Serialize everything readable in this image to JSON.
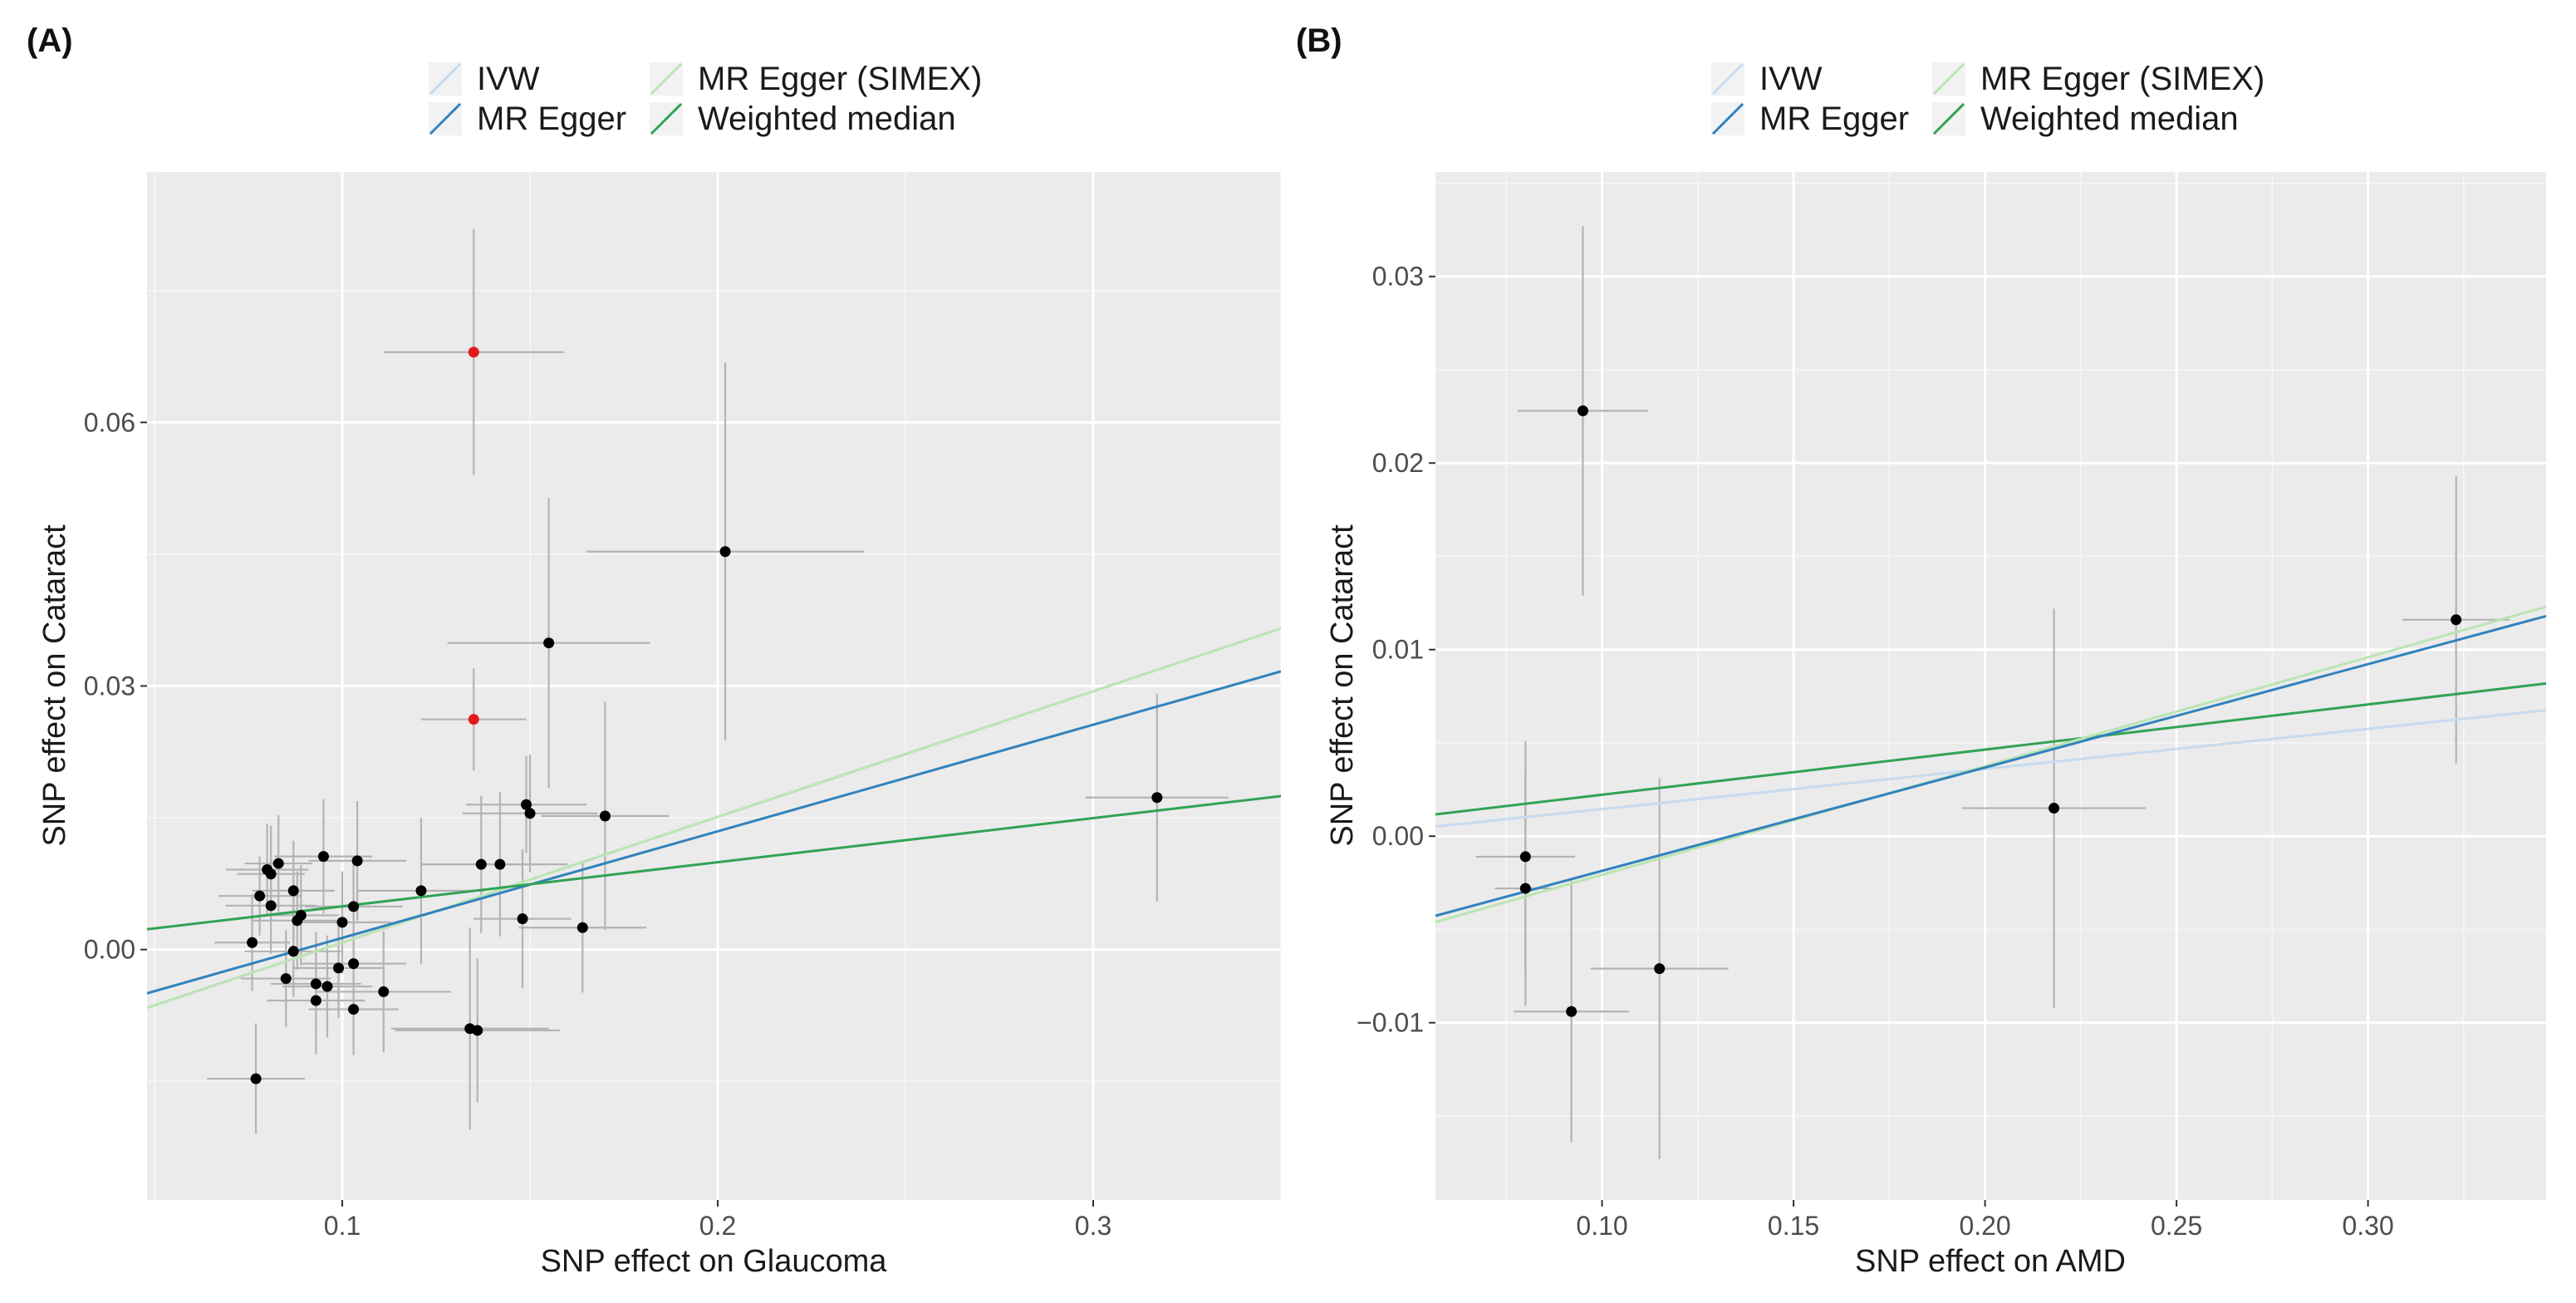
{
  "chart_data": [
    {
      "type": "scatter",
      "panel_label": "(A)",
      "xlabel": "SNP effect on Glaucoma",
      "ylabel": "SNP effect on Cataract",
      "xlim": [
        0.048,
        0.35
      ],
      "ylim": [
        -0.0285,
        0.0885
      ],
      "x_ticks": [
        0.1,
        0.2,
        0.3
      ],
      "x_tick_labels": [
        "0.1",
        "0.2",
        "0.3"
      ],
      "y_ticks": [
        0.0,
        0.03,
        0.06
      ],
      "y_tick_labels": [
        "0.00",
        "0.03",
        "0.06"
      ],
      "grid": true,
      "legend": [
        {
          "name": "IVW",
          "color": "#c6dbef"
        },
        {
          "name": "MR Egger",
          "color": "#3182bd"
        },
        {
          "name": "MR Egger (SIMEX)",
          "color": "#bae4b3"
        },
        {
          "name": "Weighted median",
          "color": "#31a354"
        }
      ],
      "lines": [
        {
          "name": "IVW",
          "intercept": -0.0135,
          "slope": 0.143,
          "color": "#c6dbef"
        },
        {
          "name": "MR Egger (SIMEX)",
          "intercept": -0.0135,
          "slope": 0.143,
          "color": "#bae4b3"
        },
        {
          "name": "MR Egger",
          "intercept": -0.0108,
          "slope": 0.1213,
          "color": "#3182bd"
        },
        {
          "name": "Weighted median",
          "intercept": -0.0001,
          "slope": 0.0502,
          "color": "#31a354"
        }
      ],
      "points": [
        {
          "x": 0.135,
          "y": 0.068,
          "xerr": 0.024,
          "yerr": 0.014,
          "outlier": true
        },
        {
          "x": 0.135,
          "y": 0.0262,
          "xerr": 0.014,
          "yerr": 0.0058,
          "outlier": true
        },
        {
          "x": 0.202,
          "y": 0.0453,
          "xerr": 0.037,
          "yerr": 0.0215
        },
        {
          "x": 0.155,
          "y": 0.0349,
          "xerr": 0.027,
          "yerr": 0.0165
        },
        {
          "x": 0.317,
          "y": 0.0173,
          "xerr": 0.019,
          "yerr": 0.0118
        },
        {
          "x": 0.17,
          "y": 0.0152,
          "xerr": 0.017,
          "yerr": 0.013
        },
        {
          "x": 0.149,
          "y": 0.0165,
          "xerr": 0.016,
          "yerr": 0.0055
        },
        {
          "x": 0.15,
          "y": 0.0155,
          "xerr": 0.018,
          "yerr": 0.0067
        },
        {
          "x": 0.137,
          "y": 0.0097,
          "xerr": 0.016,
          "yerr": 0.0078
        },
        {
          "x": 0.142,
          "y": 0.0097,
          "xerr": 0.018,
          "yerr": 0.0082
        },
        {
          "x": 0.148,
          "y": 0.0035,
          "xerr": 0.013,
          "yerr": 0.0079
        },
        {
          "x": 0.164,
          "y": 0.0025,
          "xerr": 0.017,
          "yerr": 0.0074
        },
        {
          "x": 0.121,
          "y": 0.0067,
          "xerr": 0.017,
          "yerr": 0.0083
        },
        {
          "x": 0.134,
          "y": -0.009,
          "xerr": 0.021,
          "yerr": 0.0115
        },
        {
          "x": 0.136,
          "y": -0.0092,
          "xerr": 0.022,
          "yerr": 0.0082
        },
        {
          "x": 0.095,
          "y": 0.0106,
          "xerr": 0.013,
          "yerr": 0.0065
        },
        {
          "x": 0.104,
          "y": 0.0101,
          "xerr": 0.013,
          "yerr": 0.0068
        },
        {
          "x": 0.083,
          "y": 0.0098,
          "xerr": 0.009,
          "yerr": 0.0055
        },
        {
          "x": 0.08,
          "y": 0.0091,
          "xerr": 0.011,
          "yerr": 0.0052
        },
        {
          "x": 0.081,
          "y": 0.0086,
          "xerr": 0.009,
          "yerr": 0.0055
        },
        {
          "x": 0.087,
          "y": 0.0067,
          "xerr": 0.011,
          "yerr": 0.0057
        },
        {
          "x": 0.078,
          "y": 0.0061,
          "xerr": 0.011,
          "yerr": 0.0045
        },
        {
          "x": 0.081,
          "y": 0.005,
          "xerr": 0.012,
          "yerr": 0.0055
        },
        {
          "x": 0.103,
          "y": 0.0049,
          "xerr": 0.013,
          "yerr": 0.0054
        },
        {
          "x": 0.089,
          "y": 0.0039,
          "xerr": 0.01,
          "yerr": 0.0057
        },
        {
          "x": 0.088,
          "y": 0.0033,
          "xerr": 0.012,
          "yerr": 0.0056
        },
        {
          "x": 0.1,
          "y": 0.0031,
          "xerr": 0.013,
          "yerr": 0.0058
        },
        {
          "x": 0.076,
          "y": 0.0008,
          "xerr": 0.01,
          "yerr": 0.0055
        },
        {
          "x": 0.087,
          "y": -0.0002,
          "xerr": 0.013,
          "yerr": 0.0052
        },
        {
          "x": 0.103,
          "y": -0.0016,
          "xerr": 0.014,
          "yerr": 0.0053
        },
        {
          "x": 0.099,
          "y": -0.0021,
          "xerr": 0.012,
          "yerr": 0.0057
        },
        {
          "x": 0.085,
          "y": -0.0033,
          "xerr": 0.012,
          "yerr": 0.0055
        },
        {
          "x": 0.093,
          "y": -0.0039,
          "xerr": 0.012,
          "yerr": 0.0059
        },
        {
          "x": 0.096,
          "y": -0.0042,
          "xerr": 0.012,
          "yerr": 0.0058
        },
        {
          "x": 0.111,
          "y": -0.0048,
          "xerr": 0.018,
          "yerr": 0.0069
        },
        {
          "x": 0.093,
          "y": -0.0058,
          "xerr": 0.013,
          "yerr": 0.0061
        },
        {
          "x": 0.103,
          "y": -0.0068,
          "xerr": 0.012,
          "yerr": 0.0052
        },
        {
          "x": 0.077,
          "y": -0.0147,
          "xerr": 0.013,
          "yerr": 0.0063
        }
      ]
    },
    {
      "type": "scatter",
      "panel_label": "(B)",
      "xlabel": "SNP effect on AMD",
      "ylabel": "SNP effect on Cataract",
      "xlim": [
        0.0565,
        0.3465
      ],
      "ylim": [
        -0.0195,
        0.0356
      ],
      "x_ticks": [
        0.1,
        0.15,
        0.2,
        0.25,
        0.3
      ],
      "x_tick_labels": [
        "0.10",
        "0.15",
        "0.20",
        "0.25",
        "0.30"
      ],
      "y_ticks": [
        -0.01,
        0.0,
        0.01,
        0.02,
        0.03
      ],
      "y_tick_labels": [
        "−0.01",
        "0.00",
        "0.01",
        "0.02",
        "0.03"
      ],
      "grid": true,
      "legend": [
        {
          "name": "IVW",
          "color": "#c6dbef"
        },
        {
          "name": "MR Egger",
          "color": "#3182bd"
        },
        {
          "name": "MR Egger (SIMEX)",
          "color": "#bae4b3"
        },
        {
          "name": "Weighted median",
          "color": "#31a354"
        }
      ],
      "lines": [
        {
          "name": "IVW",
          "intercept": -0.0007,
          "slope": 0.0215,
          "color": "#c6dbef"
        },
        {
          "name": "Weighted median",
          "intercept": -0.0002,
          "slope": 0.0242,
          "color": "#31a354"
        },
        {
          "name": "MR Egger (SIMEX)",
          "intercept": -0.0079,
          "slope": 0.0583,
          "color": "#bae4b3"
        },
        {
          "name": "MR Egger",
          "intercept": -0.0074,
          "slope": 0.0554,
          "color": "#3182bd"
        }
      ],
      "points": [
        {
          "x": 0.095,
          "y": 0.0228,
          "xerr": 0.017,
          "yerr": 0.0099
        },
        {
          "x": 0.323,
          "y": 0.0116,
          "xerr": 0.014,
          "yerr": 0.0077
        },
        {
          "x": 0.218,
          "y": 0.0015,
          "xerr": 0.024,
          "yerr": 0.0107
        },
        {
          "x": 0.08,
          "y": -0.0011,
          "xerr": 0.013,
          "yerr": 0.0062
        },
        {
          "x": 0.08,
          "y": -0.0028,
          "xerr": 0.008,
          "yerr": 0.0063
        },
        {
          "x": 0.115,
          "y": -0.0071,
          "xerr": 0.018,
          "yerr": 0.0102
        },
        {
          "x": 0.092,
          "y": -0.0094,
          "xerr": 0.015,
          "yerr": 0.007
        }
      ]
    }
  ]
}
